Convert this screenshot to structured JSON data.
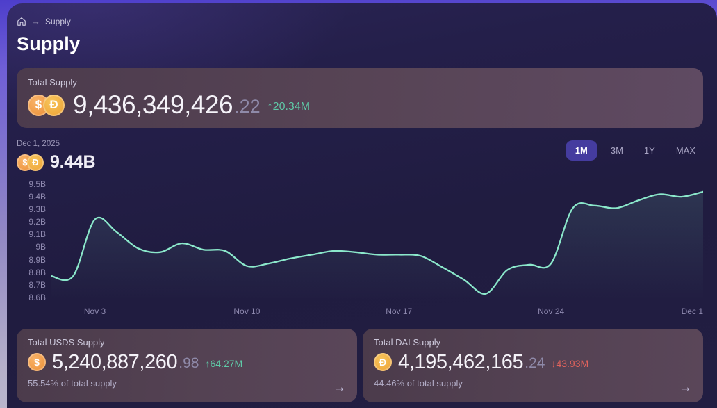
{
  "colors": {
    "panel_bg": "#211d41",
    "outer_gradient_top": "#4d3ecb",
    "outer_gradient_bottom": "#bdb9ce",
    "card_bg_left": "#4c3b4d",
    "card_bg_right": "#5f4a62",
    "line": "#8be8cb",
    "positive": "#5fc9a7",
    "negative": "#e2635c",
    "active_range_bg": "#453c9f",
    "coin_usds": "#f09c44",
    "coin_dai": "#f2b63f"
  },
  "breadcrumb": {
    "separator": "→",
    "current": "Supply"
  },
  "page": {
    "title": "Supply"
  },
  "coins": {
    "usds_glyph": "$",
    "dai_glyph": "Đ"
  },
  "total_supply_card": {
    "label": "Total Supply",
    "value_int": "9,436,349,426",
    "value_dec": ".22",
    "delta": "↑20.34M"
  },
  "chart_header": {
    "date": "Dec 1, 2025",
    "value": "9.44B",
    "ranges": [
      {
        "label": "1M",
        "active": true
      },
      {
        "label": "3M",
        "active": false
      },
      {
        "label": "1Y",
        "active": false
      },
      {
        "label": "MAX",
        "active": false
      }
    ]
  },
  "chart_data": {
    "type": "area",
    "title": "Total Supply over time (1M view)",
    "unit": "B",
    "line_color": "#8be8cb",
    "ylim": [
      8.6,
      9.5
    ],
    "grid": false,
    "legend": "none",
    "x": [
      "Nov 1",
      "Nov 2",
      "Nov 3",
      "Nov 4",
      "Nov 5",
      "Nov 6",
      "Nov 7",
      "Nov 8",
      "Nov 9",
      "Nov 10",
      "Nov 11",
      "Nov 12",
      "Nov 13",
      "Nov 14",
      "Nov 15",
      "Nov 16",
      "Nov 17",
      "Nov 18",
      "Nov 19",
      "Nov 20",
      "Nov 21",
      "Nov 22",
      "Nov 23",
      "Nov 24",
      "Nov 25",
      "Nov 26",
      "Nov 27",
      "Nov 28",
      "Nov 29",
      "Nov 30",
      "Dec 1"
    ],
    "values": [
      8.77,
      8.77,
      9.22,
      9.12,
      8.99,
      8.96,
      9.03,
      8.98,
      8.97,
      8.85,
      8.87,
      8.91,
      8.94,
      8.97,
      8.96,
      8.94,
      8.94,
      8.93,
      8.84,
      8.74,
      8.63,
      8.82,
      8.86,
      8.87,
      9.31,
      9.33,
      9.31,
      9.37,
      9.42,
      9.4,
      9.44
    ],
    "y_ticks": [
      "9.5B",
      "9.4B",
      "9.3B",
      "9.2B",
      "9.1B",
      "9B",
      "8.9B",
      "8.8B",
      "8.7B",
      "8.6B"
    ],
    "x_ticks": [
      {
        "label": "Nov 3",
        "pos": 6.67
      },
      {
        "label": "Nov 10",
        "pos": 30.0
      },
      {
        "label": "Nov 17",
        "pos": 53.33
      },
      {
        "label": "Nov 24",
        "pos": 76.67
      },
      {
        "label": "Dec 1",
        "pos": 100.0
      }
    ]
  },
  "usds_card": {
    "label": "Total USDS Supply",
    "value_int": "5,240,887,260",
    "value_dec": ".98",
    "delta": "↑64.27M",
    "share": "55.54% of total supply",
    "arrow": "→"
  },
  "dai_card": {
    "label": "Total DAI Supply",
    "value_int": "4,195,462,165",
    "value_dec": ".24",
    "delta": "↓43.93M",
    "share": "44.46% of total supply",
    "arrow": "→"
  }
}
